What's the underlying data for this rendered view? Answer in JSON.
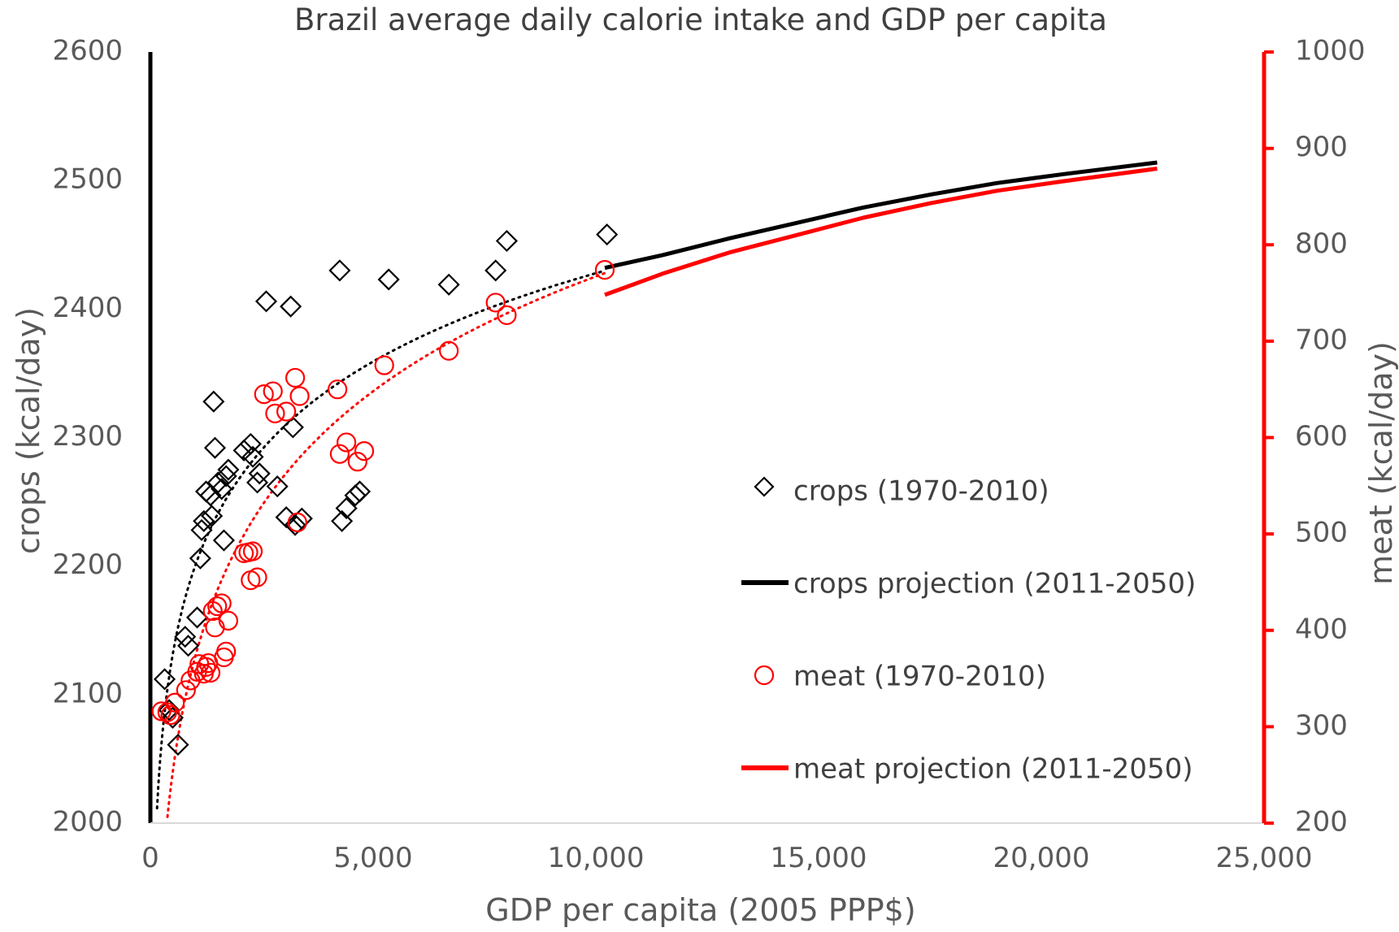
{
  "chart_data": {
    "type": "scatter",
    "title": "Brazil average daily calorie intake and GDP per capita",
    "xlabel": "GDP per capita (2005 PPP$)",
    "ylabel_left": "crops (kcal/day)",
    "ylabel_right": "meat (kcal/day)",
    "xlim": [
      0,
      25000
    ],
    "ylim_left": [
      2000,
      2600
    ],
    "ylim_right": [
      200,
      1000
    ],
    "x_ticks": [
      "0",
      "5,000",
      "10,000",
      "15,000",
      "20,000",
      "25,000"
    ],
    "y_left_ticks": [
      "2000",
      "2100",
      "2200",
      "2300",
      "2400",
      "2500",
      "2600"
    ],
    "y_right_ticks": [
      "200",
      "300",
      "400",
      "500",
      "600",
      "700",
      "800",
      "900",
      "1000"
    ],
    "grid": false,
    "legend_position": "right-middle",
    "colors": {
      "crops": "#000000",
      "meat": "#ff0000",
      "text": "#595959"
    },
    "series": [
      {
        "name": "crops (1970-2010)",
        "kind": "scatter",
        "marker": "diamond",
        "axis": "left",
        "points": [
          [
            320,
            2112
          ],
          [
            420,
            2088
          ],
          [
            500,
            2082
          ],
          [
            620,
            2061
          ],
          [
            780,
            2145
          ],
          [
            850,
            2138
          ],
          [
            1050,
            2160
          ],
          [
            1120,
            2206
          ],
          [
            1150,
            2228
          ],
          [
            1200,
            2235
          ],
          [
            1250,
            2258
          ],
          [
            1350,
            2255
          ],
          [
            1380,
            2239
          ],
          [
            1420,
            2328
          ],
          [
            1450,
            2292
          ],
          [
            1520,
            2265
          ],
          [
            1600,
            2260
          ],
          [
            1650,
            2220
          ],
          [
            1700,
            2270
          ],
          [
            1750,
            2275
          ],
          [
            2100,
            2290
          ],
          [
            2250,
            2295
          ],
          [
            2300,
            2285
          ],
          [
            2400,
            2265
          ],
          [
            2450,
            2272
          ],
          [
            2600,
            2406
          ],
          [
            2850,
            2262
          ],
          [
            3050,
            2238
          ],
          [
            3150,
            2402
          ],
          [
            3200,
            2308
          ],
          [
            3250,
            2232
          ],
          [
            3400,
            2237
          ],
          [
            4250,
            2430
          ],
          [
            4300,
            2235
          ],
          [
            4400,
            2245
          ],
          [
            4600,
            2255
          ],
          [
            4700,
            2258
          ],
          [
            5350,
            2423
          ],
          [
            6700,
            2419
          ],
          [
            7750,
            2430
          ],
          [
            8000,
            2453
          ],
          [
            10250,
            2458
          ]
        ]
      },
      {
        "name": "meat (1970-2010)",
        "kind": "scatter",
        "marker": "circle",
        "axis": "right",
        "points": [
          [
            250,
            316
          ],
          [
            380,
            315
          ],
          [
            450,
            312
          ],
          [
            550,
            325
          ],
          [
            800,
            338
          ],
          [
            900,
            348
          ],
          [
            1050,
            357
          ],
          [
            1100,
            365
          ],
          [
            1200,
            355
          ],
          [
            1250,
            362
          ],
          [
            1300,
            366
          ],
          [
            1350,
            356
          ],
          [
            1400,
            420
          ],
          [
            1450,
            403
          ],
          [
            1500,
            425
          ],
          [
            1600,
            428
          ],
          [
            1650,
            372
          ],
          [
            1700,
            378
          ],
          [
            1750,
            410
          ],
          [
            2100,
            480
          ],
          [
            2200,
            481
          ],
          [
            2250,
            452
          ],
          [
            2300,
            482
          ],
          [
            2400,
            455
          ],
          [
            2550,
            645
          ],
          [
            2750,
            648
          ],
          [
            2800,
            625
          ],
          [
            3050,
            627
          ],
          [
            3250,
            662
          ],
          [
            3300,
            512
          ],
          [
            3350,
            643
          ],
          [
            4200,
            650
          ],
          [
            4250,
            583
          ],
          [
            4400,
            595
          ],
          [
            4650,
            575
          ],
          [
            4800,
            586
          ],
          [
            5250,
            675
          ],
          [
            6700,
            690
          ],
          [
            7750,
            740
          ],
          [
            8000,
            727
          ],
          [
            10200,
            774
          ]
        ]
      },
      {
        "name": "crops projection (2011-2050)",
        "kind": "line",
        "axis": "left",
        "points": [
          [
            10200,
            2432
          ],
          [
            11500,
            2442
          ],
          [
            13000,
            2455
          ],
          [
            14500,
            2467
          ],
          [
            16000,
            2479
          ],
          [
            17500,
            2489
          ],
          [
            19000,
            2498
          ],
          [
            20500,
            2505
          ],
          [
            22600,
            2514
          ]
        ]
      },
      {
        "name": "meat projection (2011-2050)",
        "kind": "line",
        "axis": "right",
        "points": [
          [
            10200,
            748
          ],
          [
            11500,
            770
          ],
          [
            13000,
            792
          ],
          [
            14500,
            810
          ],
          [
            16000,
            828
          ],
          [
            17500,
            843
          ],
          [
            19000,
            856
          ],
          [
            20500,
            866
          ],
          [
            22600,
            879
          ]
        ]
      },
      {
        "kind": "trend",
        "axis": "left",
        "equation": "y = a*ln(x) + b",
        "a": 99.1,
        "b": 1515.1,
        "x_range": [
          150,
          10200
        ]
      },
      {
        "kind": "trend",
        "axis": "right",
        "equation": "y = a*ln(x) + b",
        "a": 171.8,
        "b": -815.2,
        "x_range": [
          340,
          10200
        ]
      }
    ]
  }
}
